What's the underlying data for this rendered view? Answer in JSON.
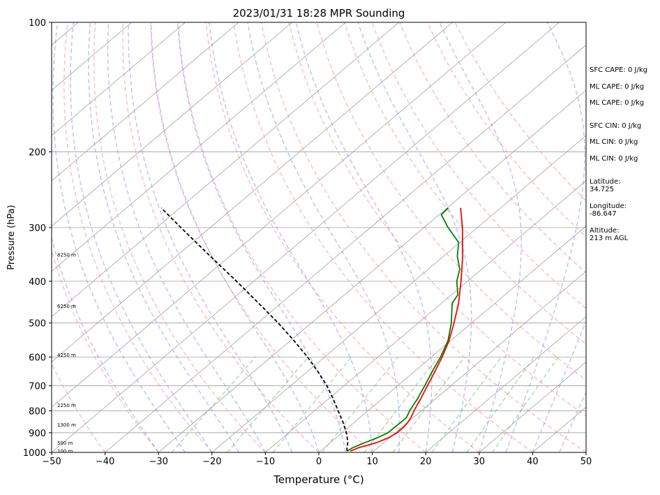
{
  "chart_data": {
    "type": "skew-t",
    "title": "2023/01/31 18:28 MPR Sounding",
    "xlabel": "Temperature (°C)",
    "ylabel": "Pressure (hPa)",
    "xlim": [
      -50,
      50
    ],
    "ylim_hpa": [
      1000,
      100
    ],
    "y_scale": "log",
    "skew_deg_per_decade": 95,
    "grid": true,
    "x_ticks": [
      "−50",
      "−40",
      "−30",
      "−20",
      "−10",
      "0",
      "10",
      "20",
      "30",
      "40",
      "50"
    ],
    "x_tick_values": [
      -50,
      -40,
      -30,
      -20,
      -10,
      0,
      10,
      20,
      30,
      40,
      50
    ],
    "y_ticks": [
      "100",
      "200",
      "300",
      "400",
      "500",
      "600",
      "700",
      "800",
      "900",
      "1000"
    ],
    "y_tick_values": [
      100,
      200,
      300,
      400,
      500,
      600,
      700,
      800,
      900,
      1000
    ],
    "height_labels": [
      {
        "text": "8250 m",
        "p": 348
      },
      {
        "text": "6250 m",
        "p": 458
      },
      {
        "text": "4250 m",
        "p": 595
      },
      {
        "text": "2250 m",
        "p": 778
      },
      {
        "text": "1300 m",
        "p": 865
      },
      {
        "text": "500 m",
        "p": 952
      },
      {
        "text": "100 m",
        "p": 995
      }
    ],
    "series": [
      {
        "name": "",
        "color": "#ff0000",
        "p": [
          993,
          975,
          950,
          925,
          900,
          875,
          850,
          825,
          800,
          750,
          700,
          650,
          600,
          550,
          500,
          450,
          400,
          350,
          300,
          270
        ],
        "values": [
          5.6,
          6.4,
          8.6,
          9.8,
          10.3,
          10.3,
          10.0,
          9.4,
          8.6,
          7.2,
          5.6,
          3.9,
          2.0,
          -0.3,
          -3.3,
          -6.8,
          -11.2,
          -16.4,
          -22.8,
          -27.5
        ]
      },
      {
        "name": "",
        "color": "#008000",
        "p": [
          993,
          975,
          950,
          925,
          900,
          875,
          850,
          830,
          800,
          750,
          700,
          650,
          600,
          550,
          500,
          450,
          430,
          400,
          375,
          350,
          325,
          300,
          280,
          270
        ],
        "values": [
          5.0,
          5.3,
          6.4,
          7.7,
          8.6,
          8.6,
          8.7,
          8.7,
          7.8,
          6.6,
          5.1,
          3.4,
          1.7,
          -0.5,
          -3.8,
          -8.0,
          -8.8,
          -12.0,
          -14.1,
          -17.4,
          -20.2,
          -25.5,
          -29.6,
          -29.8
        ]
      },
      {
        "name": "",
        "color": "#000000",
        "dashed": true,
        "p": [
          993,
          975,
          950,
          925,
          900,
          850,
          800,
          750,
          700,
          650,
          600,
          550,
          500,
          450,
          400,
          350,
          300,
          270
        ],
        "values": [
          5.0,
          4.2,
          3.3,
          2.1,
          0.8,
          -2.2,
          -5.6,
          -9.2,
          -13.2,
          -17.9,
          -23.2,
          -29.3,
          -36.2,
          -44.2,
          -53.2,
          -63.6,
          -75.5,
          -83.5
        ]
      }
    ],
    "background_lines": {
      "isotherms_c": [
        -140,
        -130,
        -120,
        -110,
        -100,
        -90,
        -80,
        -70,
        -60,
        -50,
        -40,
        -30,
        -20,
        -10,
        0,
        10,
        20,
        30,
        40,
        50
      ],
      "dry_adiabats_c": [
        -40,
        -30,
        -20,
        -10,
        0,
        10,
        20,
        30,
        40,
        50,
        60,
        70,
        80,
        90,
        100,
        110,
        120
      ],
      "moist_adiabats_c": [
        -30,
        -25,
        -20,
        -15,
        -10,
        -5,
        0,
        5,
        10,
        15,
        20,
        25,
        30,
        35,
        40,
        45
      ],
      "mixing_ratios_gkg": [
        0.4,
        1,
        2,
        4,
        7,
        10,
        16,
        24,
        32
      ]
    },
    "colors": {
      "temperature": "#ff0000",
      "dewpoint": "#008000",
      "parcel": "#000000",
      "dry_adiabat": "#ff8a8a",
      "moist_adiabat": "#8c8cff",
      "mixing_ratio": "#7fbf7f",
      "isotherm": "#a0a0a0"
    }
  },
  "side_panel": {
    "sfc_cape": "SFC CAPE: 0 J/kg",
    "ml_cape_1": "ML CAPE: 0 J/kg",
    "ml_cape_2": "ML CAPE: 0 J/kg",
    "sfc_cin": "SFC CIN: 0 J/kg",
    "ml_cin_1": "ML CIN: 0 J/kg",
    "ml_cin_2": "ML CIN: 0 J/kg",
    "latitude": "Latitude:\n34.725",
    "longitude": "Longitude:\n-86.647",
    "altitude": "Altitude:\n213 m AGL"
  }
}
